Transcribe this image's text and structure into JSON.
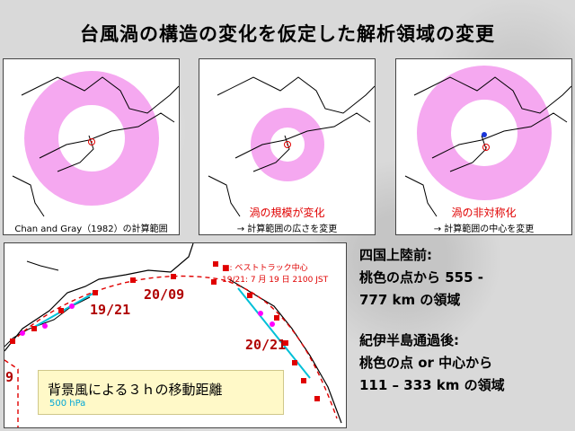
{
  "title": "台風渦の構造の変化を仮定した解析領域の変更",
  "panels": [
    {
      "caption_line1": "Chan and Gray（1982）の計算範囲",
      "caption_line2": ""
    },
    {
      "caption_line1": "渦の規模が変化",
      "caption_line2": "→ 計算範囲の広さを変更"
    },
    {
      "caption_line1": "渦の非対称化",
      "caption_line2": "→ 計算範囲の中心を変更"
    }
  ],
  "track": {
    "legend_line1": "■: ベストトラック中心",
    "legend_line2": "19/21: 7 月 19 日 2100 JST",
    "labels": [
      "19/21",
      "20/09",
      "20/21",
      "9"
    ],
    "wind_box_title": "背景風による３ｈの移動距離",
    "wind_box_sub": "500 hPa"
  },
  "notes": {
    "before_heading": "四国上陸前:",
    "before_line1": "桃色の点から 555 -",
    "before_line2": "777 km の領域",
    "after_heading": "紀伊半島通過後:",
    "after_line1": "桃色の点 or 中心から",
    "after_line2": "111 – 333 km の領域"
  },
  "colors": {
    "ring": "#f5a8f0",
    "best_track": "#e00000",
    "wind_arrow": "#00c0d8",
    "magenta_dot": "#ff00ff"
  }
}
